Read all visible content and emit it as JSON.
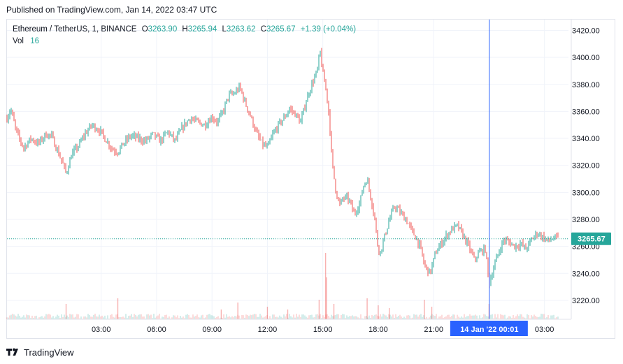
{
  "published": "Published on TradingView.com, Jan 14, 2022 03:47 UTC",
  "legend": {
    "symbol": "Ethereum / TetherUS, 1, BINANCE",
    "o_key": "O",
    "o": "3263.90",
    "h_key": "H",
    "h": "3265.94",
    "l_key": "L",
    "l": "3263.62",
    "c_key": "C",
    "c": "3265.67",
    "change": "+1.39 (+0.04%)",
    "vol_label": "Vol",
    "vol": "16"
  },
  "footer": {
    "brand": "TradingView",
    "logo_icon": "tradingview-logo-icon"
  },
  "colors": {
    "up": "#26a69a",
    "down": "#ef5350",
    "crosshair": "#2962ff",
    "last_price": "#26a69a"
  },
  "chart_data": {
    "type": "candlestick",
    "symbol": "Ethereum / TetherUS",
    "interval": "1",
    "exchange": "BINANCE",
    "last_price": 3265.67,
    "last_price_label": "3265.67",
    "y_ticks": [
      3220,
      3240,
      3260,
      3280,
      3300,
      3320,
      3340,
      3360,
      3380,
      3400,
      3420
    ],
    "y_tick_labels": [
      "3220.00",
      "3240.00",
      "3260.00",
      "3280.00",
      "3300.00",
      "3320.00",
      "3340.00",
      "3360.00",
      "3380.00",
      "3400.00",
      "3420.00"
    ],
    "ylim": [
      3206,
      3428
    ],
    "x_range_hours": [
      -2.1,
      28.3
    ],
    "x_ticks": [
      {
        "h": 3,
        "label": "03:00"
      },
      {
        "h": 6,
        "label": "06:00"
      },
      {
        "h": 9,
        "label": "09:00"
      },
      {
        "h": 12,
        "label": "12:00"
      },
      {
        "h": 15,
        "label": "15:00"
      },
      {
        "h": 18,
        "label": "18:00"
      },
      {
        "h": 21,
        "label": "21:00"
      },
      {
        "h": 27,
        "label": "03:00"
      }
    ],
    "crosshair": {
      "h": 24.017,
      "label": "14 Jan '22   00:01"
    },
    "price_path": [
      [
        -2.1,
        3355
      ],
      [
        -1.9,
        3362
      ],
      [
        -1.6,
        3345
      ],
      [
        -1.2,
        3333
      ],
      [
        -0.8,
        3340
      ],
      [
        -0.4,
        3336
      ],
      [
        0.0,
        3343
      ],
      [
        0.3,
        3342
      ],
      [
        0.6,
        3332
      ],
      [
        0.9,
        3322
      ],
      [
        1.1,
        3314
      ],
      [
        1.4,
        3328
      ],
      [
        1.8,
        3335
      ],
      [
        2.1,
        3343
      ],
      [
        2.5,
        3350
      ],
      [
        2.9,
        3346
      ],
      [
        3.3,
        3338
      ],
      [
        3.6,
        3332
      ],
      [
        3.9,
        3330
      ],
      [
        4.2,
        3336
      ],
      [
        4.6,
        3342
      ],
      [
        5.0,
        3340
      ],
      [
        5.4,
        3338
      ],
      [
        5.8,
        3343
      ],
      [
        6.2,
        3338
      ],
      [
        6.6,
        3345
      ],
      [
        7.0,
        3338
      ],
      [
        7.4,
        3348
      ],
      [
        7.8,
        3355
      ],
      [
        8.2,
        3352
      ],
      [
        8.6,
        3350
      ],
      [
        9.0,
        3356
      ],
      [
        9.3,
        3352
      ],
      [
        9.6,
        3360
      ],
      [
        9.9,
        3372
      ],
      [
        10.2,
        3373
      ],
      [
        10.5,
        3378
      ],
      [
        10.8,
        3366
      ],
      [
        11.1,
        3356
      ],
      [
        11.4,
        3344
      ],
      [
        11.7,
        3336
      ],
      [
        12.0,
        3333
      ],
      [
        12.3,
        3343
      ],
      [
        12.6,
        3350
      ],
      [
        12.9,
        3355
      ],
      [
        13.2,
        3362
      ],
      [
        13.5,
        3358
      ],
      [
        13.8,
        3352
      ],
      [
        14.1,
        3368
      ],
      [
        14.4,
        3380
      ],
      [
        14.7,
        3390
      ],
      [
        14.85,
        3405
      ],
      [
        15.0,
        3388
      ],
      [
        15.2,
        3374
      ],
      [
        15.35,
        3355
      ],
      [
        15.5,
        3322
      ],
      [
        15.7,
        3302
      ],
      [
        15.9,
        3290
      ],
      [
        16.1,
        3296
      ],
      [
        16.4,
        3295
      ],
      [
        16.7,
        3284
      ],
      [
        17.0,
        3292
      ],
      [
        17.2,
        3305
      ],
      [
        17.4,
        3310
      ],
      [
        17.6,
        3296
      ],
      [
        17.8,
        3282
      ],
      [
        17.95,
        3262
      ],
      [
        18.1,
        3255
      ],
      [
        18.3,
        3265
      ],
      [
        18.6,
        3280
      ],
      [
        18.9,
        3290
      ],
      [
        19.2,
        3285
      ],
      [
        19.5,
        3280
      ],
      [
        19.8,
        3272
      ],
      [
        20.1,
        3265
      ],
      [
        20.3,
        3258
      ],
      [
        20.5,
        3246
      ],
      [
        20.8,
        3240
      ],
      [
        21.1,
        3255
      ],
      [
        21.4,
        3262
      ],
      [
        21.7,
        3268
      ],
      [
        22.0,
        3273
      ],
      [
        22.3,
        3275
      ],
      [
        22.6,
        3268
      ],
      [
        22.9,
        3260
      ],
      [
        23.2,
        3250
      ],
      [
        23.5,
        3256
      ],
      [
        23.8,
        3258
      ],
      [
        24.0,
        3232
      ],
      [
        24.2,
        3242
      ],
      [
        24.5,
        3255
      ],
      [
        24.8,
        3265
      ],
      [
        25.1,
        3263
      ],
      [
        25.4,
        3260
      ],
      [
        25.7,
        3262
      ],
      [
        26.0,
        3258
      ],
      [
        26.3,
        3265
      ],
      [
        26.6,
        3270
      ],
      [
        26.9,
        3267
      ],
      [
        27.2,
        3264
      ],
      [
        27.5,
        3266
      ],
      [
        27.8,
        3266
      ]
    ],
    "volume_spikes": [
      {
        "h": 15.15,
        "v": 95
      },
      {
        "h": 15.2,
        "v": 60
      },
      {
        "h": 14.8,
        "v": 28
      },
      {
        "h": 15.6,
        "v": 22
      },
      {
        "h": 17.4,
        "v": 30
      },
      {
        "h": 18.0,
        "v": 20
      },
      {
        "h": 24.0,
        "v": 22
      },
      {
        "h": 20.5,
        "v": 28
      },
      {
        "h": 3.9,
        "v": 30
      },
      {
        "h": 1.1,
        "v": 22
      },
      {
        "h": 10.4,
        "v": 24
      },
      {
        "h": 12.0,
        "v": 18
      },
      {
        "h": 20.9,
        "v": 18
      },
      {
        "h": 18.6,
        "v": 16
      },
      {
        "h": 13.1,
        "v": 14
      },
      {
        "h": 9.5,
        "v": 14
      }
    ]
  }
}
